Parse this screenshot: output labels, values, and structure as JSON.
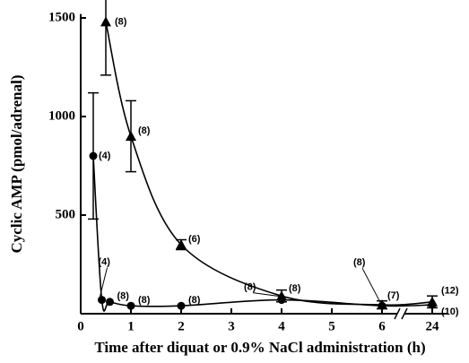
{
  "chart_data": {
    "type": "line",
    "xlabel": "Time after diquat or 0.9% NaCl administration (h)",
    "ylabel": "Cyclic AMP (pmol/adrenal)",
    "xlim": [
      0,
      24.3
    ],
    "ylim": [
      0,
      1520
    ],
    "xticks": [
      0,
      1,
      2,
      3,
      4,
      5,
      6,
      24
    ],
    "yticks": [
      500,
      1000,
      1500
    ],
    "x_break": [
      6.5,
      23.5
    ],
    "series": [
      {
        "marker": "triangle",
        "color": "#000000",
        "x": [
          0.5,
          1,
          2,
          4,
          6,
          24
        ],
        "values": [
          1480,
          900,
          350,
          90,
          45,
          60
        ],
        "errors": [
          270,
          180,
          25,
          30,
          20,
          30
        ],
        "labels": [
          "(8)",
          "(8)",
          "(6)",
          "(8)",
          "(7)",
          "(12)"
        ]
      },
      {
        "marker": "circle",
        "color": "#000000",
        "x": [
          0.25,
          0.42,
          0.58,
          1,
          2,
          4,
          6,
          24
        ],
        "values": [
          800,
          70,
          60,
          40,
          40,
          70,
          40,
          45
        ],
        "errors": [
          320,
          null,
          null,
          null,
          null,
          null,
          null,
          null
        ],
        "labels": [
          "(4)",
          "(4)",
          "(8)",
          "(8)",
          "(8)",
          "(8)",
          "(8)",
          "(10)"
        ]
      }
    ]
  }
}
